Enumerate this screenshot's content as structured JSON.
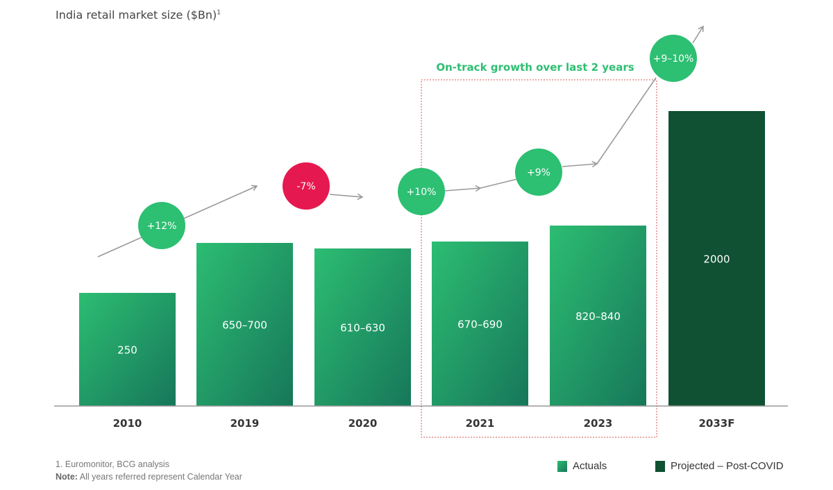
{
  "chart_data": {
    "type": "bar",
    "title": "India retail market size ($Bn)",
    "title_footnote_mark": "1",
    "categories": [
      "2010",
      "2019",
      "2020",
      "2021",
      "2023",
      "2033F"
    ],
    "value_labels": [
      "250",
      "650–700",
      "610–630",
      "670–690",
      "820–840",
      "2000"
    ],
    "values": [
      250,
      675,
      620,
      680,
      830,
      2000
    ],
    "series_type": [
      "Actuals",
      "Actuals",
      "Actuals",
      "Actuals",
      "Actuals",
      "Projected – Post-COVID"
    ],
    "growth_labels": [
      {
        "label": "+12%",
        "between": [
          "2010",
          "2019"
        ],
        "type": "positive"
      },
      {
        "label": "-7%",
        "between": [
          "2019",
          "2020"
        ],
        "type": "negative"
      },
      {
        "label": "+10%",
        "between": [
          "2020",
          "2021"
        ],
        "type": "positive"
      },
      {
        "label": "+9%",
        "between": [
          "2021",
          "2023"
        ],
        "type": "positive"
      },
      {
        "label": "+9–10%",
        "between": [
          "2023",
          "2033F"
        ],
        "type": "positive"
      }
    ],
    "annotation": "On-track growth over last 2 years",
    "legend": [
      {
        "name": "Actuals",
        "color": "#23a566"
      },
      {
        "name": "Projected – Post-COVID",
        "color": "#0f5132"
      }
    ],
    "legend_position": "bottom-right",
    "grid": false
  },
  "colors": {
    "positive": "#2dbf72",
    "negative": "#e5194f",
    "annotation": "#2dbf72",
    "frame": "#d9534f"
  },
  "footnotes": {
    "source": "1. Euromonitor, BCG analysis",
    "note_label": "Note:",
    "note_text": " All years referred represent Calendar Year"
  }
}
